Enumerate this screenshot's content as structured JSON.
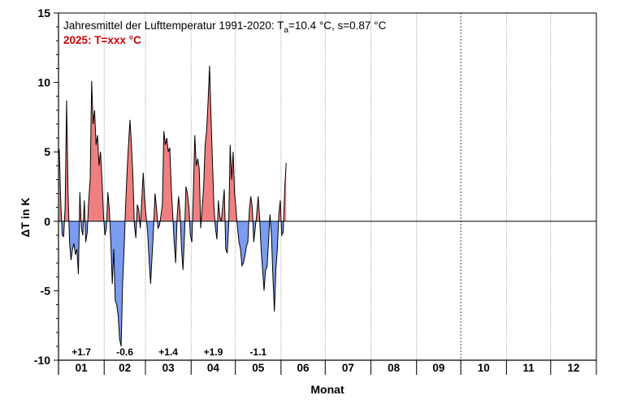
{
  "chart_data": {
    "type": "area",
    "title_parts": [
      "Jahresmittel der Lufttemperatur 1991-2020: T",
      "a",
      "=10.4 °C, s=0.87 °C"
    ],
    "subtitle": "2025: T=xxx °C",
    "xlabel": "Monat",
    "ylabel": "ΔT in K",
    "ylim": [
      -10,
      15
    ],
    "yticks": [
      -10,
      -5,
      0,
      5,
      10,
      15
    ],
    "months": [
      "01",
      "02",
      "03",
      "04",
      "05",
      "06",
      "07",
      "08",
      "09",
      "10",
      "11",
      "12"
    ],
    "monthly_anomalies": [
      {
        "month": "01",
        "label": "+1.7"
      },
      {
        "month": "02",
        "label": "-0.6"
      },
      {
        "month": "03",
        "label": "+1.4"
      },
      {
        "month": "04",
        "label": "+1.9"
      },
      {
        "month": "05",
        "label": "-1.1"
      }
    ],
    "grid": "vertical dotted lines at month boundaries",
    "colors": {
      "positive_fill": "#f08080",
      "negative_fill": "#7b9cf0",
      "line": "#000000",
      "subtitle": "#cc0000"
    },
    "daily_anomaly": [
      5.2,
      1.5,
      -1.0,
      -1.1,
      1.0,
      8.7,
      2.0,
      -1.5,
      -2.8,
      -2.0,
      -1.6,
      -2.4,
      -2.0,
      -3.8,
      2.1,
      -0.5,
      -1.0,
      1.5,
      -1.5,
      -0.8,
      1.5,
      3.0,
      10.1,
      7.0,
      8.0,
      5.5,
      6.2,
      4.0,
      5.0,
      3.0,
      0.5,
      -1.0,
      -0.5,
      2.1,
      0.8,
      -1.5,
      -4.5,
      -2.0,
      -5.7,
      -6.0,
      -6.8,
      -8.5,
      -9.0,
      -4.5,
      -2.0,
      1.0,
      3.5,
      5.5,
      7.3,
      5.5,
      3.2,
      -0.3,
      -1.2,
      1.2,
      0.8,
      -0.5,
      1.5,
      3.5,
      1.5,
      0.3,
      -0.8,
      -2.8,
      -4.5,
      -2.5,
      -0.5,
      2.0,
      1.0,
      -0.5,
      -0.3,
      0.4,
      1.2,
      6.5,
      5.5,
      6.0,
      5.0,
      5.3,
      2.5,
      0.5,
      -1.5,
      -3.0,
      0.3,
      1.8,
      0.6,
      -2.0,
      -3.5,
      -1.0,
      2.5,
      2.0,
      1.0,
      -1.0,
      -1.5,
      2.0,
      6.2,
      4.0,
      4.5,
      3.8,
      -0.5,
      1.0,
      2.5,
      5.5,
      6.5,
      8.6,
      11.2,
      7.5,
      4.2,
      1.0,
      -0.5,
      -1.3,
      1.5,
      0.3,
      0.0,
      1.2,
      2.3,
      -2.0,
      -2.3,
      -0.2,
      5.5,
      3.0,
      5.0,
      2.0,
      0.8,
      -0.5,
      -1.5,
      -2.0,
      -3.2,
      -3.0,
      -2.5,
      -1.8,
      -1.5,
      0.8,
      1.8,
      1.0,
      -1.5,
      -0.5,
      0.5,
      1.8,
      0.2,
      -2.0,
      -3.5,
      -5.0,
      -3.5,
      -3.3,
      -1.5,
      0.5,
      -1.0,
      -4.0,
      -6.5,
      -3.5,
      -2.0,
      0.5,
      1.5,
      -1.0,
      -0.8,
      2.3,
      4.2
    ]
  }
}
